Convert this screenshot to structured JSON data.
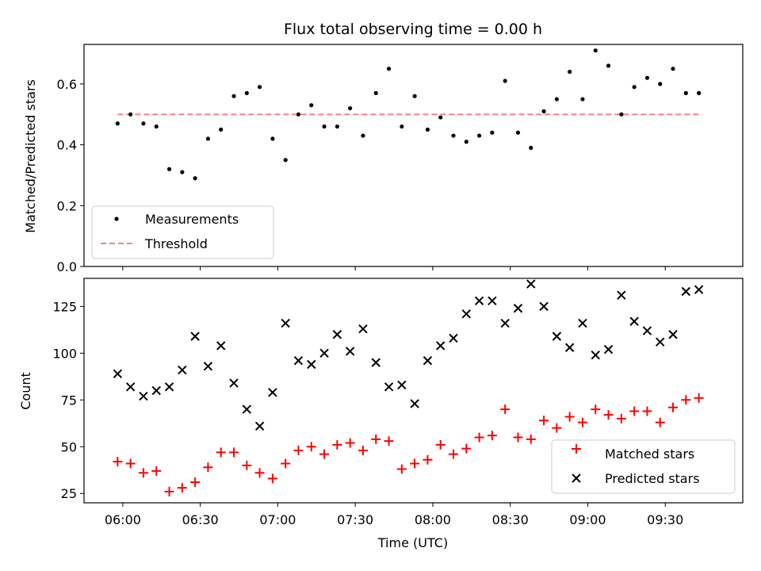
{
  "chart_data": [
    {
      "type": "scatter",
      "title": "Flux total observing time = 0.00 h",
      "xlabel": "",
      "ylabel": "Matched/Predicted stars",
      "ylim": [
        0,
        0.73
      ],
      "yticks": [
        0.0,
        0.2,
        0.4,
        0.6
      ],
      "ytick_labels": [
        "0.0",
        "0.2",
        "0.4",
        "0.6"
      ],
      "series": [
        {
          "name": "Measurements",
          "color": "#000000",
          "marker": "dot",
          "x": [
            "05:58",
            "06:03",
            "06:08",
            "06:13",
            "06:18",
            "06:23",
            "06:28",
            "06:33",
            "06:38",
            "06:43",
            "06:48",
            "06:53",
            "06:58",
            "07:03",
            "07:08",
            "07:13",
            "07:18",
            "07:23",
            "07:28",
            "07:33",
            "07:38",
            "07:43",
            "07:48",
            "07:53",
            "07:58",
            "08:03",
            "08:08",
            "08:13",
            "08:18",
            "08:23",
            "08:28",
            "08:33",
            "08:38",
            "08:43",
            "08:48",
            "08:53",
            "08:58",
            "09:03",
            "09:08",
            "09:13",
            "09:18",
            "09:23",
            "09:28",
            "09:33",
            "09:38",
            "09:43"
          ],
          "y": [
            0.47,
            0.5,
            0.47,
            0.46,
            0.32,
            0.31,
            0.29,
            0.42,
            0.45,
            0.56,
            0.57,
            0.59,
            0.42,
            0.35,
            0.5,
            0.53,
            0.46,
            0.46,
            0.52,
            0.43,
            0.57,
            0.65,
            0.46,
            0.56,
            0.45,
            0.49,
            0.43,
            0.41,
            0.43,
            0.44,
            0.61,
            0.44,
            0.39,
            0.51,
            0.55,
            0.64,
            0.55,
            0.71,
            0.66,
            0.5,
            0.59,
            0.62,
            0.6,
            0.65,
            0.57,
            0.57
          ]
        },
        {
          "name": "Threshold",
          "color": "#ff7f7f",
          "style": "dashed",
          "x": [
            "05:58",
            "09:43"
          ],
          "y": [
            0.5,
            0.5
          ]
        }
      ],
      "legend": "lower-left",
      "grid": false
    },
    {
      "type": "scatter",
      "xlabel": "Time (UTC)",
      "ylabel": "Count",
      "ylim": [
        20,
        140
      ],
      "xlim": [
        "05:45",
        "10:00"
      ],
      "yticks": [
        25,
        50,
        75,
        100,
        125
      ],
      "ytick_labels": [
        "25",
        "50",
        "75",
        "100",
        "125"
      ],
      "xticks": [
        "06:00",
        "06:30",
        "07:00",
        "07:30",
        "08:00",
        "08:30",
        "09:00",
        "09:30"
      ],
      "xtick_labels": [
        "06:00",
        "06:30",
        "07:00",
        "07:30",
        "08:00",
        "08:30",
        "09:00",
        "09:30"
      ],
      "series": [
        {
          "name": "Matched stars",
          "color": "#ff0000",
          "marker": "plus",
          "x": [
            "05:58",
            "06:03",
            "06:08",
            "06:13",
            "06:18",
            "06:23",
            "06:28",
            "06:33",
            "06:38",
            "06:43",
            "06:48",
            "06:53",
            "06:58",
            "07:03",
            "07:08",
            "07:13",
            "07:18",
            "07:23",
            "07:28",
            "07:33",
            "07:38",
            "07:43",
            "07:48",
            "07:53",
            "07:58",
            "08:03",
            "08:08",
            "08:13",
            "08:18",
            "08:23",
            "08:28",
            "08:33",
            "08:38",
            "08:43",
            "08:48",
            "08:53",
            "08:58",
            "09:03",
            "09:08",
            "09:13",
            "09:18",
            "09:23",
            "09:28",
            "09:33",
            "09:38",
            "09:43"
          ],
          "y": [
            42,
            41,
            36,
            37,
            26,
            28,
            31,
            39,
            47,
            47,
            40,
            36,
            33,
            41,
            48,
            50,
            46,
            51,
            52,
            48,
            54,
            53,
            38,
            41,
            43,
            51,
            46,
            49,
            55,
            56,
            70,
            55,
            54,
            64,
            60,
            66,
            63,
            70,
            67,
            65,
            69,
            69,
            63,
            71,
            75,
            76
          ]
        },
        {
          "name": "Predicted stars",
          "color": "#000000",
          "marker": "x",
          "x": [
            "05:58",
            "06:03",
            "06:08",
            "06:13",
            "06:18",
            "06:23",
            "06:28",
            "06:33",
            "06:38",
            "06:43",
            "06:48",
            "06:53",
            "06:58",
            "07:03",
            "07:08",
            "07:13",
            "07:18",
            "07:23",
            "07:28",
            "07:33",
            "07:38",
            "07:43",
            "07:48",
            "07:53",
            "07:58",
            "08:03",
            "08:08",
            "08:13",
            "08:18",
            "08:23",
            "08:28",
            "08:33",
            "08:38",
            "08:43",
            "08:48",
            "08:53",
            "08:58",
            "09:03",
            "09:08",
            "09:13",
            "09:18",
            "09:23",
            "09:28",
            "09:33",
            "09:38",
            "09:43"
          ],
          "y": [
            89,
            82,
            77,
            80,
            82,
            91,
            109,
            93,
            104,
            84,
            70,
            61,
            79,
            116,
            96,
            94,
            100,
            110,
            101,
            113,
            95,
            82,
            83,
            73,
            96,
            104,
            108,
            121,
            128,
            128,
            116,
            124,
            137,
            125,
            109,
            103,
            116,
            99,
            102,
            131,
            117,
            112,
            106,
            110,
            133,
            134
          ]
        }
      ],
      "legend": "lower-right",
      "grid": false
    }
  ]
}
